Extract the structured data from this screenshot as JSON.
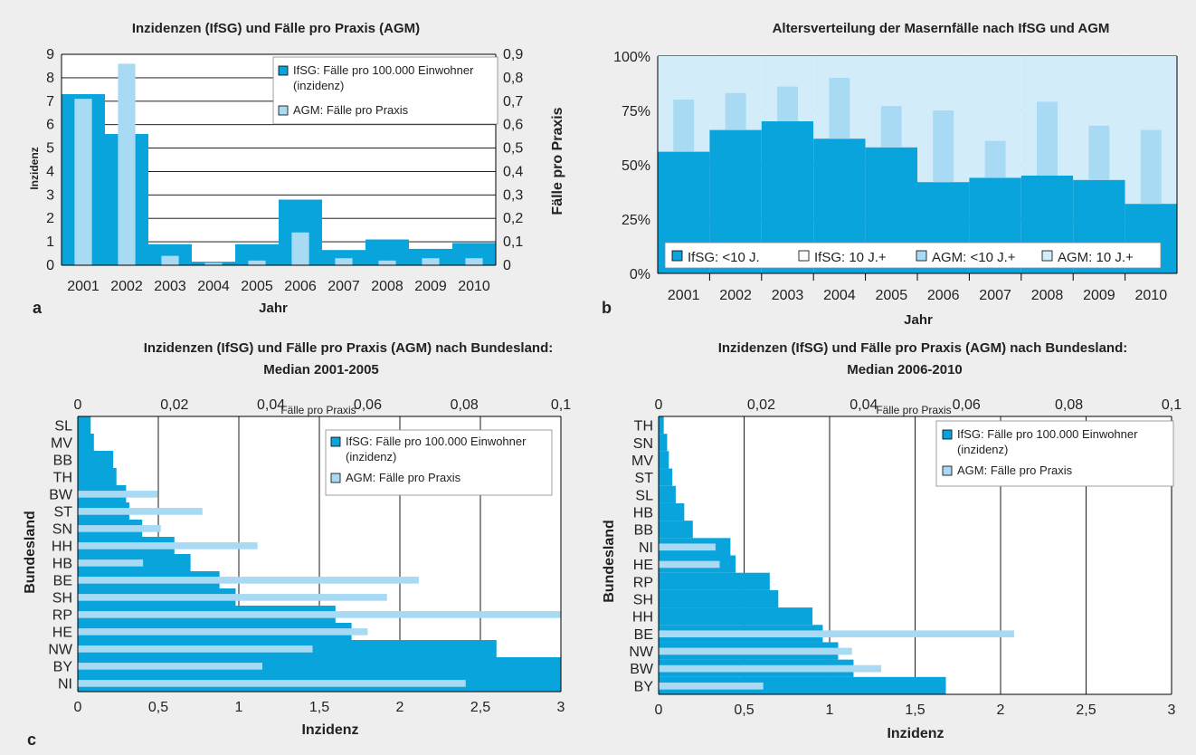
{
  "colors": {
    "ifsg": "#0aa4dc",
    "agm": "#a8daf4",
    "agm_light": "#d3ecfa",
    "background": "#eeeeee",
    "plot_bg": "#ffffff"
  },
  "chart_data": [
    {
      "id": "a",
      "type": "bar",
      "panel_label": "a",
      "title": "Inzidenzen (IfSG) und Fälle pro Praxis (AGM)",
      "xlabel": "Jahr",
      "ylabel": "Inzidenz",
      "y2label": "Fälle pro Praxis",
      "ylim": [
        0,
        9
      ],
      "y2lim": [
        0,
        0.9
      ],
      "yticks": [
        "0",
        "1",
        "2",
        "3",
        "4",
        "5",
        "6",
        "7",
        "8",
        "9"
      ],
      "y2ticks": [
        "0",
        "0,1",
        "0,2",
        "0,3",
        "0,4",
        "0,5",
        "0,6",
        "0,7",
        "0,8",
        "0,9"
      ],
      "categories": [
        "2001",
        "2002",
        "2003",
        "2004",
        "2005",
        "2006",
        "2007",
        "2008",
        "2009",
        "2010"
      ],
      "series": [
        {
          "name": "IfSG: Fälle pro 100.000 Einwohner (inzidenz)",
          "axis": "left",
          "values": [
            7.3,
            5.6,
            0.9,
            0.15,
            0.9,
            2.8,
            0.65,
            1.1,
            0.7,
            0.95
          ]
        },
        {
          "name": "AGM: Fälle pro Praxis",
          "axis": "right",
          "values": [
            0.71,
            0.86,
            0.04,
            0.01,
            0.02,
            0.14,
            0.03,
            0.02,
            0.03,
            0.03
          ]
        }
      ],
      "legend_position": "top-right",
      "grid": true
    },
    {
      "id": "b",
      "type": "bar",
      "panel_label": "b",
      "title": "Altersverteilung der Masernfälle nach IfSG und AGM",
      "xlabel": "Jahr",
      "yticks": [
        "0%",
        "25%",
        "50%",
        "75%",
        "100%"
      ],
      "ylim": [
        0,
        100
      ],
      "categories": [
        "2001",
        "2002",
        "2003",
        "2004",
        "2005",
        "2006",
        "2007",
        "2008",
        "2009",
        "2010"
      ],
      "series": [
        {
          "name": "IfSG: <10 J.",
          "values": [
            56,
            66,
            70,
            62,
            58,
            42,
            44,
            45,
            43,
            32
          ]
        },
        {
          "name": "IfSG: 10 J.+",
          "values": [
            44,
            34,
            30,
            38,
            42,
            58,
            56,
            55,
            57,
            68
          ]
        },
        {
          "name": "AGM: <10 J.+",
          "values": [
            80,
            83,
            86,
            90,
            77,
            75,
            61,
            79,
            68,
            66
          ]
        },
        {
          "name": "AGM: 10 J.+",
          "values": [
            20,
            17,
            14,
            10,
            23,
            25,
            39,
            21,
            32,
            34
          ]
        }
      ],
      "legend_position": "bottom",
      "grid": true
    },
    {
      "id": "c1",
      "type": "bar",
      "orientation": "horizontal",
      "panel_label": "c",
      "title_line1": "Inzidenzen (IfSG) und Fälle pro Praxis (AGM) nach Bundesland:",
      "title_line2": "Median 2001-2005",
      "xlabel": "Inzidenz",
      "x2label": "Fälle pro Praxis",
      "ylabel": "Bundesland",
      "xlim": [
        0,
        3
      ],
      "x2lim": [
        0,
        0.1
      ],
      "xticks": [
        "0",
        "0,5",
        "1",
        "1,5",
        "2",
        "2,5",
        "3"
      ],
      "x2ticks": [
        "0",
        "0,02",
        "0,04",
        "0,06",
        "0,08",
        "0,1"
      ],
      "categories": [
        "SL",
        "MV",
        "BB",
        "TH",
        "BW",
        "ST",
        "SN",
        "HH",
        "HB",
        "BE",
        "SH",
        "RP",
        "HE",
        "NW",
        "BY",
        "NI"
      ],
      "series": [
        {
          "name": "IfSG: Fälle pro 100.000 Einwohner (inzidenz)",
          "axis": "bottom",
          "values": [
            0.08,
            0.1,
            0.22,
            0.24,
            0.3,
            0.32,
            0.4,
            0.6,
            0.7,
            0.88,
            0.98,
            1.6,
            1.7,
            2.6,
            3.0,
            3.0
          ]
        },
        {
          "name": "AGM: Fälle pro Praxis",
          "axis": "top",
          "values": [
            0,
            0,
            0,
            0,
            0.0165,
            0.0258,
            0.0172,
            0.0372,
            0.0135,
            0.0706,
            0.064,
            0.1,
            0.06,
            0.0486,
            0.0382,
            0.0803
          ]
        }
      ],
      "legend_position": "top-right",
      "grid": true
    },
    {
      "id": "c2",
      "type": "bar",
      "orientation": "horizontal",
      "title_line1": "Inzidenzen (IfSG) und Fälle pro Praxis (AGM) nach Bundesland:",
      "title_line2": "Median 2006-2010",
      "xlabel": "Inzidenz",
      "x2label": "Fälle pro Praxis",
      "ylabel": "Bundesland",
      "xlim": [
        0,
        3
      ],
      "x2lim": [
        0,
        0.1
      ],
      "xticks": [
        "0",
        "0,5",
        "1",
        "1,5",
        "2",
        "2,5",
        "3"
      ],
      "x2ticks": [
        "0",
        "0,02",
        "0,04",
        "0,06",
        "0,08",
        "0,1"
      ],
      "categories": [
        "TH",
        "SN",
        "MV",
        "ST",
        "SL",
        "HB",
        "BB",
        "NI",
        "HE",
        "RP",
        "SH",
        "HH",
        "BE",
        "NW",
        "BW",
        "BY"
      ],
      "series": [
        {
          "name": "IfSG: Fälle pro 100.000 Einwohner (inzidenz)",
          "axis": "bottom",
          "values": [
            0.03,
            0.05,
            0.06,
            0.08,
            0.1,
            0.15,
            0.2,
            0.42,
            0.45,
            0.65,
            0.7,
            0.9,
            0.96,
            1.05,
            1.14,
            1.68
          ]
        },
        {
          "name": "AGM: Fälle pro Praxis",
          "axis": "top",
          "values": [
            0,
            0,
            0,
            0,
            0,
            0,
            0,
            0.0111,
            0.0119,
            0,
            0,
            0,
            0.0693,
            0.0377,
            0.0434,
            0.0204
          ]
        }
      ],
      "legend_position": "top-right",
      "grid": true
    }
  ]
}
